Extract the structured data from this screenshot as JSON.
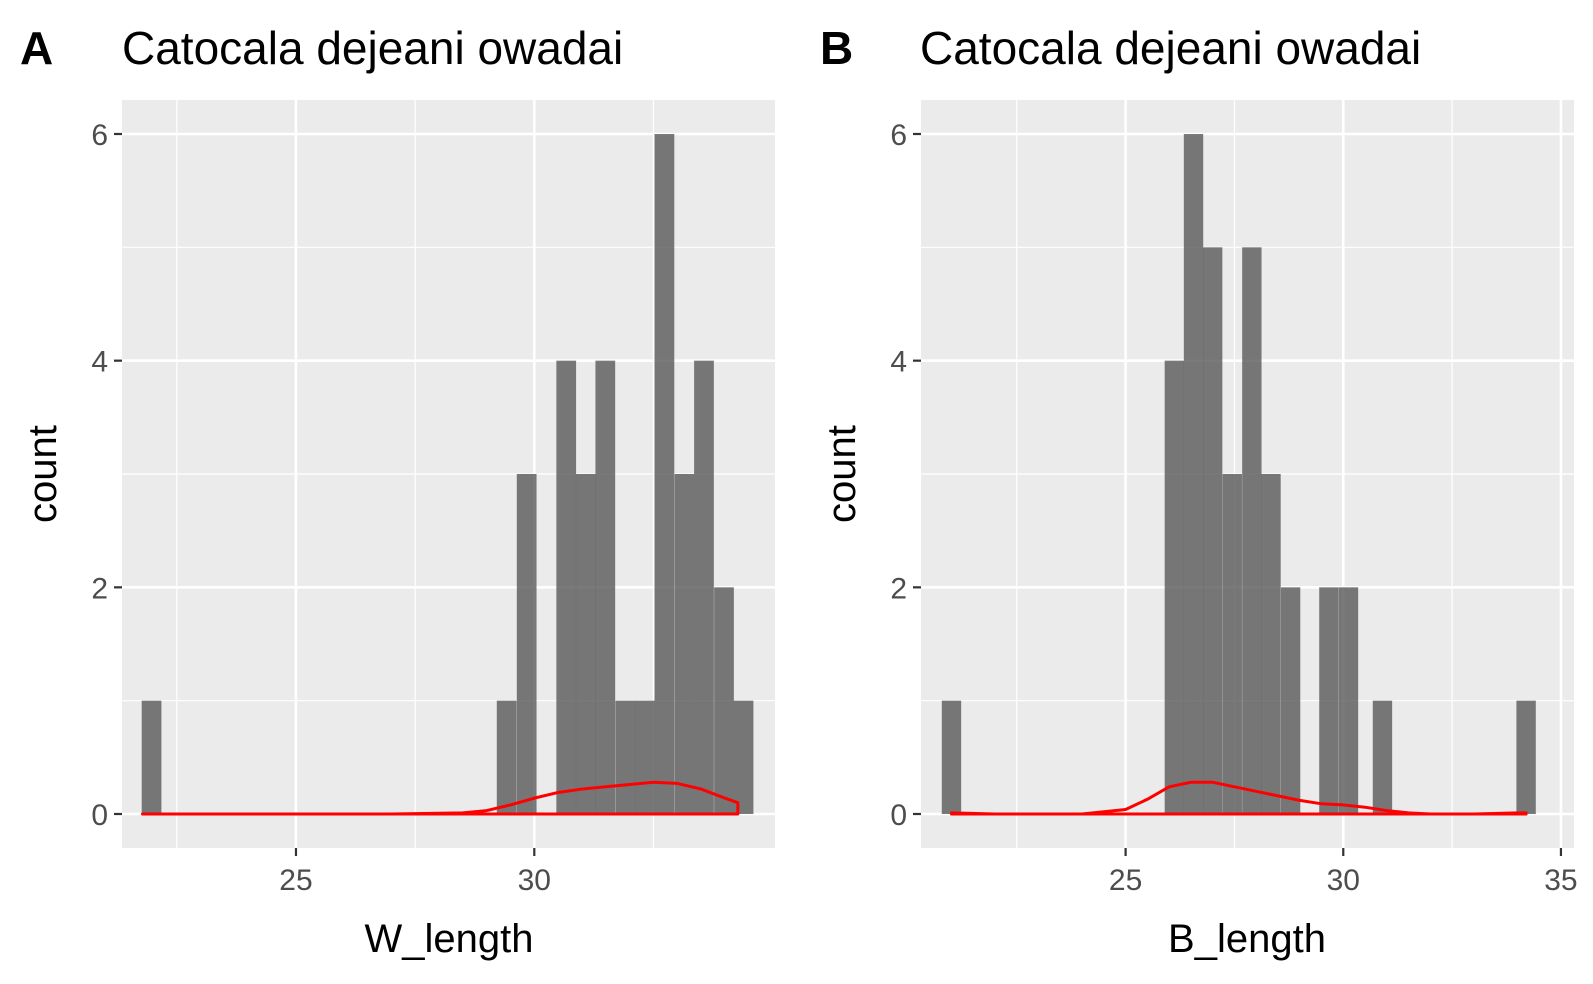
{
  "chart_data": [
    {
      "type": "bar",
      "panel_label": "A",
      "title": "Catocala dejeani owadai",
      "xlabel": "W_length",
      "ylabel": "count",
      "xlim": [
        21.35,
        35.05
      ],
      "ylim": [
        -0.3,
        6.3
      ],
      "xticks": [
        25,
        30
      ],
      "xtick_labels": [
        "25",
        "30"
      ],
      "yticks": [
        0,
        2,
        4,
        6
      ],
      "ytick_labels": [
        "0",
        "2",
        "4",
        "6"
      ],
      "grid": true,
      "bar_color": "#595959",
      "bin_width": 0.414,
      "bins": [
        {
          "x": 21.97,
          "count": 1
        },
        {
          "x": 29.42,
          "count": 1
        },
        {
          "x": 29.84,
          "count": 3
        },
        {
          "x": 30.67,
          "count": 4
        },
        {
          "x": 31.08,
          "count": 3
        },
        {
          "x": 31.49,
          "count": 4
        },
        {
          "x": 31.91,
          "count": 1
        },
        {
          "x": 32.32,
          "count": 1
        },
        {
          "x": 32.73,
          "count": 6
        },
        {
          "x": 33.15,
          "count": 3
        },
        {
          "x": 33.56,
          "count": 4
        },
        {
          "x": 33.98,
          "count": 2
        },
        {
          "x": 34.39,
          "count": 1
        }
      ],
      "density": {
        "color": "#ff0000",
        "x": [
          21.78,
          22.3,
          23,
          25,
          27,
          28.5,
          29.0,
          29.5,
          30.0,
          30.5,
          31.0,
          31.5,
          32.0,
          32.5,
          33.0,
          33.5,
          34.0,
          34.27,
          34.27
        ],
        "y": [
          0.0,
          0.0,
          0.0,
          0.0,
          0.0,
          0.01,
          0.03,
          0.08,
          0.14,
          0.19,
          0.22,
          0.24,
          0.26,
          0.28,
          0.27,
          0.22,
          0.14,
          0.1,
          0.0
        ]
      }
    },
    {
      "type": "bar",
      "panel_label": "B",
      "title": "Catocala dejeani owadai",
      "xlabel": "B_length",
      "ylabel": "count",
      "xlim": [
        20.3,
        35.3
      ],
      "ylim": [
        -0.3,
        6.3
      ],
      "xticks": [
        25,
        30,
        35
      ],
      "xtick_labels": [
        "25",
        "30",
        "35"
      ],
      "yticks": [
        0,
        2,
        4,
        6
      ],
      "ytick_labels": [
        "0",
        "2",
        "4",
        "6"
      ],
      "grid": true,
      "bar_color": "#595959",
      "bin_width": 0.445,
      "bins": [
        {
          "x": 21.0,
          "count": 1
        },
        {
          "x": 26.12,
          "count": 4
        },
        {
          "x": 26.56,
          "count": 6
        },
        {
          "x": 27.0,
          "count": 5
        },
        {
          "x": 27.45,
          "count": 3
        },
        {
          "x": 27.9,
          "count": 5
        },
        {
          "x": 28.34,
          "count": 3
        },
        {
          "x": 28.79,
          "count": 2
        },
        {
          "x": 29.67,
          "count": 2
        },
        {
          "x": 30.12,
          "count": 2
        },
        {
          "x": 30.9,
          "count": 1
        },
        {
          "x": 34.2,
          "count": 1
        }
      ],
      "density": {
        "color": "#ff0000",
        "x": [
          21.0,
          22.0,
          23.0,
          24.0,
          25.0,
          25.5,
          26.0,
          26.5,
          27.0,
          27.5,
          28.0,
          28.5,
          29.0,
          29.5,
          30.0,
          30.5,
          31.0,
          31.5,
          32.0,
          33.0,
          34.0,
          34.2
        ],
        "y": [
          0.01,
          0.0,
          0.0,
          0.0,
          0.04,
          0.13,
          0.24,
          0.28,
          0.28,
          0.24,
          0.2,
          0.16,
          0.12,
          0.09,
          0.08,
          0.06,
          0.03,
          0.01,
          0.0,
          0.0,
          0.01,
          0.01
        ]
      }
    }
  ]
}
